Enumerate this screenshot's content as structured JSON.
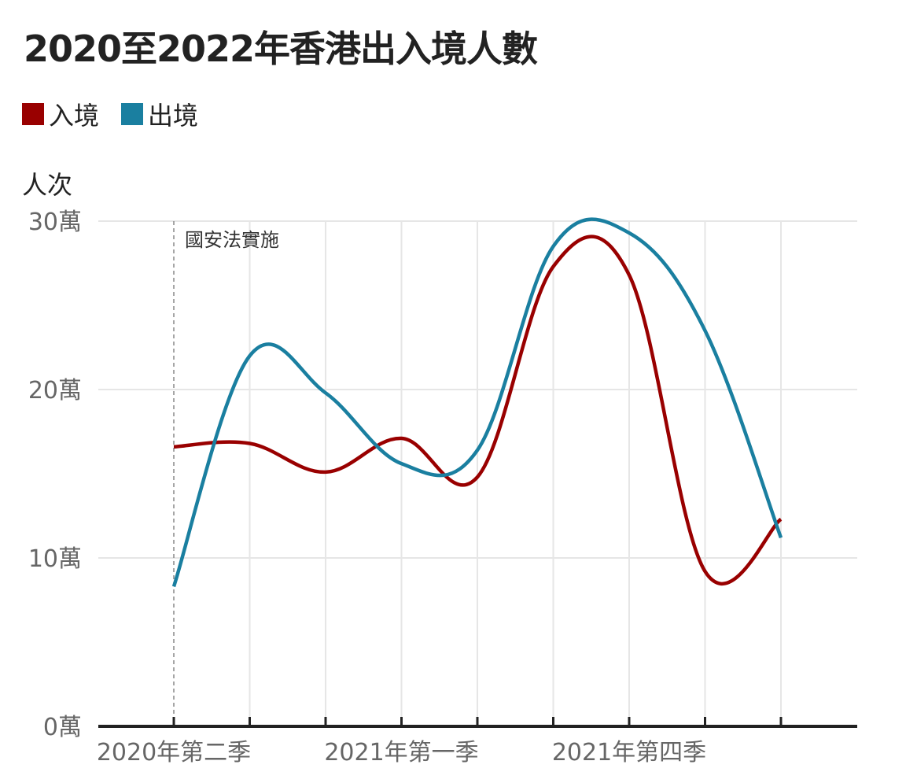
{
  "title": "2020至2022年香港出入境人數",
  "legend": [
    {
      "label": "入境",
      "color": "#990000"
    },
    {
      "label": "出境",
      "color": "#1a7fa0"
    }
  ],
  "chart_data": {
    "type": "line",
    "title": "2020至2022年香港出入境人數",
    "ylabel": "人次",
    "ylim": [
      0,
      300000
    ],
    "yticks": [
      {
        "value": 0,
        "label": "0萬"
      },
      {
        "value": 100000,
        "label": "10萬"
      },
      {
        "value": 200000,
        "label": "20萬"
      },
      {
        "value": 300000,
        "label": "30萬"
      }
    ],
    "x": [
      0,
      1,
      2,
      3,
      4,
      5,
      6,
      7,
      8
    ],
    "xticks": [
      {
        "index": 0,
        "label": "2020年第二季"
      },
      {
        "index": 3,
        "label": "2021年第一季"
      },
      {
        "index": 6,
        "label": "2021年第四季"
      }
    ],
    "series": [
      {
        "name": "入境",
        "color": "#990000",
        "values": [
          166000,
          168000,
          151000,
          171000,
          148000,
          273000,
          268000,
          92000,
          123000
        ]
      },
      {
        "name": "出境",
        "color": "#1a7fa0",
        "values": [
          83000,
          220000,
          198000,
          156000,
          164000,
          285000,
          293000,
          235000,
          112000
        ]
      }
    ],
    "annotation": {
      "index": 0,
      "label": "國安法實施"
    },
    "grid": true
  }
}
